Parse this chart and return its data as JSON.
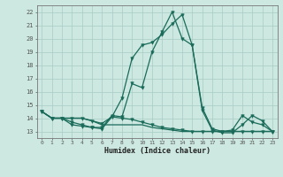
{
  "xlabel": "Humidex (Indice chaleur)",
  "ylabel": "",
  "xlim": [
    -0.5,
    23.5
  ],
  "ylim": [
    12.5,
    22.5
  ],
  "xticks": [
    0,
    1,
    2,
    3,
    4,
    5,
    6,
    7,
    8,
    9,
    10,
    11,
    12,
    13,
    14,
    15,
    16,
    17,
    18,
    19,
    20,
    21,
    22,
    23
  ],
  "yticks": [
    13,
    14,
    15,
    16,
    17,
    18,
    19,
    20,
    21,
    22
  ],
  "background_color": "#cce8e0",
  "grid_color": "#a8ccC4",
  "line_color": "#1a6b5a",
  "lines": [
    [
      14.5,
      14.0,
      14.0,
      13.7,
      13.5,
      13.3,
      13.2,
      14.1,
      15.5,
      18.5,
      19.5,
      19.7,
      20.3,
      21.1,
      21.8,
      19.5,
      14.8,
      13.2,
      13.0,
      13.1,
      14.2,
      13.7,
      13.5,
      13.0
    ],
    [
      14.5,
      14.0,
      14.0,
      14.0,
      14.0,
      13.8,
      13.5,
      13.5,
      13.5,
      13.5,
      13.5,
      13.3,
      13.2,
      13.1,
      13.0,
      13.0,
      13.0,
      13.0,
      13.0,
      13.0,
      13.0,
      13.0,
      13.0,
      13.0
    ],
    [
      14.5,
      14.0,
      14.0,
      14.0,
      14.0,
      13.8,
      13.6,
      14.1,
      14.0,
      13.9,
      13.7,
      13.5,
      13.3,
      13.2,
      13.1,
      13.0,
      13.0,
      13.0,
      13.0,
      13.0,
      13.0,
      13.0,
      13.0,
      13.0
    ],
    [
      14.5,
      14.0,
      14.0,
      13.5,
      13.4,
      13.3,
      13.3,
      14.2,
      14.1,
      16.6,
      16.3,
      19.0,
      20.5,
      22.0,
      20.0,
      19.5,
      14.6,
      13.1,
      12.9,
      12.9,
      13.5,
      14.2,
      13.8,
      13.0
    ]
  ]
}
